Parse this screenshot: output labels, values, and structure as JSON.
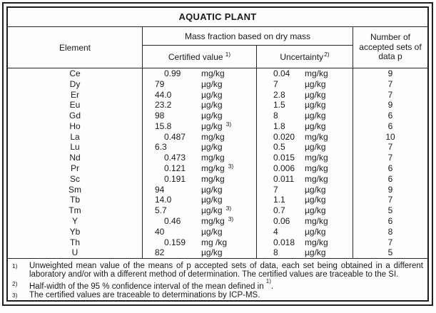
{
  "table": {
    "title": "AQUATIC PLANT",
    "header": {
      "element": "Element",
      "mass_fraction": "Mass fraction based on dry mass",
      "certified_value": "Certified value",
      "certified_value_sup": "1)",
      "uncertainty": "Uncertainty",
      "uncertainty_sup": "2)",
      "sets": "Number of accepted sets of data p"
    },
    "rows": [
      {
        "element": "Ce",
        "certified_value": "0.99",
        "certified_unit": "mg/kg",
        "certified_note": "",
        "uncertainty": "0.04",
        "uncertainty_unit": "mg/kg",
        "sets": "9"
      },
      {
        "element": "Dy",
        "certified_value": "79",
        "certified_unit": "µg/kg",
        "certified_note": "",
        "uncertainty": "7",
        "uncertainty_unit": "µg/kg",
        "sets": "7"
      },
      {
        "element": "Er",
        "certified_value": "44.0",
        "certified_unit": "µg/kg",
        "certified_note": "",
        "uncertainty": "2.8",
        "uncertainty_unit": "µg/kg",
        "sets": "7"
      },
      {
        "element": "Eu",
        "certified_value": "23.2",
        "certified_unit": "µg/kg",
        "certified_note": "",
        "uncertainty": "1.5",
        "uncertainty_unit": "µg/kg",
        "sets": "9"
      },
      {
        "element": "Gd",
        "certified_value": "98",
        "certified_unit": "µg/kg",
        "certified_note": "",
        "uncertainty": "8",
        "uncertainty_unit": "µg/kg",
        "sets": "6"
      },
      {
        "element": "Ho",
        "certified_value": "15.8",
        "certified_unit": "µg/kg",
        "certified_note": "3)",
        "uncertainty": "1.8",
        "uncertainty_unit": "µg/kg",
        "sets": "6"
      },
      {
        "element": "La",
        "certified_value": "0.487",
        "certified_unit": "mg/kg",
        "certified_note": "",
        "uncertainty": "0.020",
        "uncertainty_unit": "mg/kg",
        "sets": "10"
      },
      {
        "element": "Lu",
        "certified_value": "6.3",
        "certified_unit": "µg/kg",
        "certified_note": "",
        "uncertainty": "0.5",
        "uncertainty_unit": "µg/kg",
        "sets": "7"
      },
      {
        "element": "Nd",
        "certified_value": "0.473",
        "certified_unit": "mg/kg",
        "certified_note": "",
        "uncertainty": "0.015",
        "uncertainty_unit": "mg/kg",
        "sets": "7"
      },
      {
        "element": "Pr",
        "certified_value": "0.121",
        "certified_unit": "mg/kg",
        "certified_note": "3)",
        "uncertainty": "0.006",
        "uncertainty_unit": "mg/kg",
        "sets": "6"
      },
      {
        "element": "Sc",
        "certified_value": "0.191",
        "certified_unit": "mg/kg",
        "certified_note": "",
        "uncertainty": "0.011",
        "uncertainty_unit": "mg/kg",
        "sets": "6"
      },
      {
        "element": "Sm",
        "certified_value": "94",
        "certified_unit": "µg/kg",
        "certified_note": "",
        "uncertainty": "7",
        "uncertainty_unit": "µg/kg",
        "sets": "9"
      },
      {
        "element": "Tb",
        "certified_value": "14.0",
        "certified_unit": "µg/kg",
        "certified_note": "",
        "uncertainty": "1.1",
        "uncertainty_unit": "µg/kg",
        "sets": "7"
      },
      {
        "element": "Tm",
        "certified_value": "5.7",
        "certified_unit": "µg/kg",
        "certified_note": "3)",
        "uncertainty": "0.7",
        "uncertainty_unit": "µg/kg",
        "sets": "5"
      },
      {
        "element": "Y",
        "certified_value": "0.46",
        "certified_unit": "mg/kg",
        "certified_note": "3)",
        "uncertainty": "0.06",
        "uncertainty_unit": "mg/kg",
        "sets": "6"
      },
      {
        "element": "Yb",
        "certified_value": "40",
        "certified_unit": "µg/kg",
        "certified_note": "",
        "uncertainty": "4",
        "uncertainty_unit": "µg/kg",
        "sets": "8"
      },
      {
        "element": "Th",
        "certified_value": "0.159",
        "certified_unit": "mg /kg",
        "certified_note": "",
        "uncertainty": "0.018",
        "uncertainty_unit": "mg/kg",
        "sets": "7"
      },
      {
        "element": "U",
        "certified_value": "82",
        "certified_unit": "µg/kg",
        "certified_note": "",
        "uncertainty": "8",
        "uncertainty_unit": "µg/kg",
        "sets": "5"
      }
    ]
  },
  "footnotes": [
    {
      "marker": "1)",
      "text": "Unweighted mean value of the means of p accepted sets of data, each set being obtained in a different laboratory and/or with a different method of determination. The certified values are traceable to the SI.",
      "ref": "",
      "tail": ""
    },
    {
      "marker": "2)",
      "text": "Half-width of the 95 % confidence interval of the mean defined in ",
      "ref": "1)",
      "tail": "."
    },
    {
      "marker": "3)",
      "text": "The certified values are traceable to determinations by ICP-MS.",
      "ref": "",
      "tail": ""
    }
  ]
}
